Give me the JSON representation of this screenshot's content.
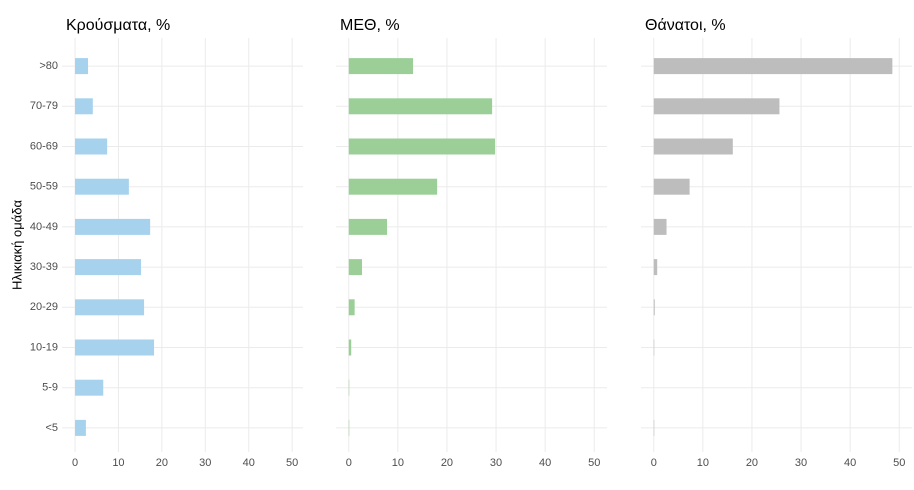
{
  "chart_data": [
    {
      "type": "bar",
      "orientation": "horizontal",
      "title": "Κρούσματα, %",
      "ylabel": "Ηλικιακή ομάδα",
      "categories": [
        "<5",
        "5-9",
        "10-19",
        "20-29",
        "30-39",
        "40-49",
        "50-59",
        "60-69",
        "70-79",
        ">80"
      ],
      "values": [
        2.5,
        6.5,
        18.2,
        15.9,
        15.2,
        17.3,
        12.4,
        7.4,
        4.1,
        3.0
      ],
      "color": "#a6d2ee",
      "xlim": [
        -3,
        52.5
      ],
      "xticks": [
        0,
        10,
        20,
        30,
        40,
        50
      ],
      "grid": true
    },
    {
      "type": "bar",
      "orientation": "horizontal",
      "title": "ΜΕΘ, %",
      "categories": [
        "<5",
        "5-9",
        "10-19",
        "20-29",
        "30-39",
        "40-49",
        "50-59",
        "60-69",
        "70-79",
        ">80"
      ],
      "values": [
        0.1,
        0.1,
        0.5,
        1.2,
        2.7,
        7.8,
        18.0,
        29.8,
        29.2,
        13.1
      ],
      "color": "#9ccf98",
      "xlim": [
        -2.6,
        52.6
      ],
      "xticks": [
        0,
        10,
        20,
        30,
        40,
        50
      ],
      "grid": true
    },
    {
      "type": "bar",
      "orientation": "horizontal",
      "title": "Θάνατοι, %",
      "categories": [
        "<5",
        "5-9",
        "10-19",
        "20-29",
        "30-39",
        "40-49",
        "50-59",
        "60-69",
        "70-79",
        ">80"
      ],
      "values": [
        0.1,
        0,
        0.1,
        0.2,
        0.7,
        2.6,
        7.3,
        16.1,
        25.6,
        48.6
      ],
      "color": "#bdbdbd",
      "xlim": [
        -2.6,
        52.6
      ],
      "xticks": [
        0,
        10,
        20,
        30,
        40,
        50
      ],
      "grid": true
    }
  ]
}
